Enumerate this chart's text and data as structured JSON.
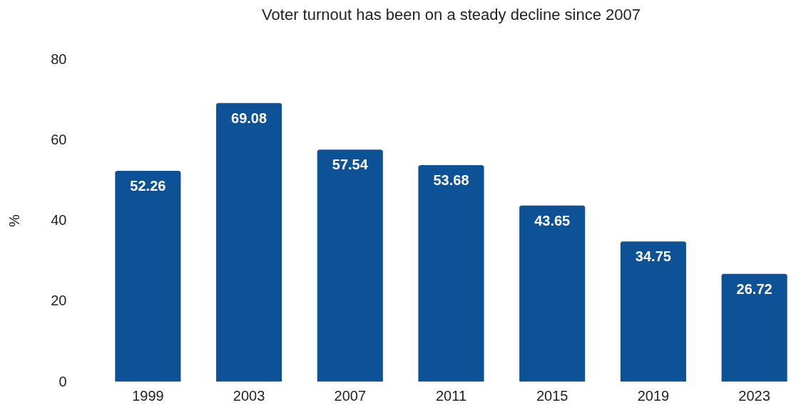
{
  "chart_data": {
    "type": "bar",
    "title": "Voter turnout has been on a steady decline since 2007",
    "ylabel": "%",
    "categories": [
      "1999",
      "2003",
      "2007",
      "2011",
      "2015",
      "2019",
      "2023"
    ],
    "values": [
      52.26,
      69.08,
      57.54,
      53.68,
      43.65,
      34.75,
      26.72
    ],
    "color": "#0d5296",
    "ylim": [
      0,
      80
    ],
    "yticks": [
      0,
      20,
      40,
      60,
      80
    ],
    "grid": false,
    "data_labels": true
  }
}
